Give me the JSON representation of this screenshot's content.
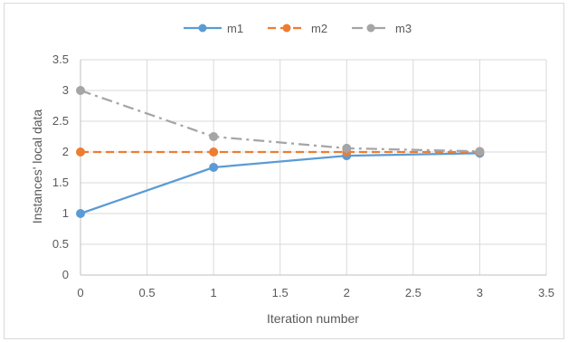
{
  "chart_data": {
    "type": "line",
    "title": "",
    "xlabel": "Iteration number",
    "ylabel": "Instances' local data",
    "xlim": [
      0,
      3.5
    ],
    "ylim": [
      0,
      3.5
    ],
    "x_ticks": [
      "0",
      "0.5",
      "1",
      "1.5",
      "2",
      "2.5",
      "3",
      "3.5"
    ],
    "y_ticks": [
      "0",
      "0.5",
      "1",
      "1.5",
      "2",
      "2.5",
      "3",
      "3.5"
    ],
    "grid": true,
    "legend_position": "top",
    "series": [
      {
        "name": "m1",
        "color": "#5b9bd5",
        "line_style": "solid",
        "x": [
          0,
          1,
          2,
          3
        ],
        "values": [
          1,
          1.75,
          1.94,
          1.98
        ]
      },
      {
        "name": "m2",
        "color": "#ed7d31",
        "line_style": "dashed",
        "x": [
          0,
          1,
          2,
          3
        ],
        "values": [
          2,
          2,
          2,
          2
        ]
      },
      {
        "name": "m3",
        "color": "#a5a5a5",
        "line_style": "dash-dot",
        "x": [
          0,
          1,
          2,
          3
        ],
        "values": [
          3,
          2.25,
          2.06,
          2.01
        ]
      }
    ]
  }
}
